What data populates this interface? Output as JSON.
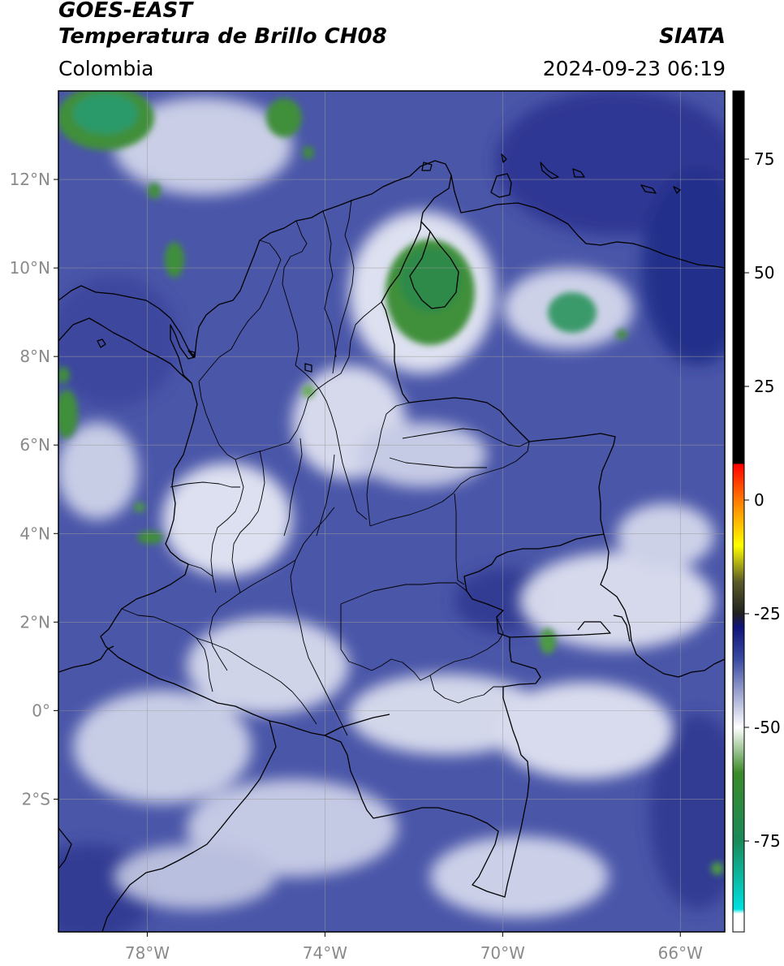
{
  "header": {
    "satellite": "GOES-EAST",
    "product": "Temperatura de Brillo CH08",
    "region": "Colombia",
    "agency": "SIATA",
    "datetime": "2024-09-23 06:19"
  },
  "map": {
    "lon_range": [
      -80,
      -65
    ],
    "lat_range": [
      -5,
      14
    ],
    "lat_ticks": [
      {
        "value": 12,
        "label": "12°N"
      },
      {
        "value": 10,
        "label": "10°N"
      },
      {
        "value": 8,
        "label": "8°N"
      },
      {
        "value": 6,
        "label": "6°N"
      },
      {
        "value": 4,
        "label": "4°N"
      },
      {
        "value": 2,
        "label": "2°N"
      },
      {
        "value": 0,
        "label": "0°"
      },
      {
        "value": -2,
        "label": "2°S"
      }
    ],
    "lon_ticks": [
      {
        "value": -78,
        "label": "78°W"
      },
      {
        "value": -74,
        "label": "74°W"
      },
      {
        "value": -70,
        "label": "70°W"
      },
      {
        "value": -66,
        "label": "66°W"
      }
    ],
    "grid": true
  },
  "colorbar": {
    "range": [
      -95,
      90
    ],
    "ticks": [
      {
        "value": 75,
        "label": "75"
      },
      {
        "value": 50,
        "label": "50"
      },
      {
        "value": 25,
        "label": "25"
      },
      {
        "value": 0,
        "label": "0"
      },
      {
        "value": -25,
        "label": "-25"
      },
      {
        "value": -50,
        "label": "-50"
      },
      {
        "value": -75,
        "label": "-75"
      }
    ],
    "color_stops": [
      {
        "value": 90,
        "color": "#000000"
      },
      {
        "value": 8,
        "color": "#000000"
      },
      {
        "value": 7.9,
        "color": "#ff0000"
      },
      {
        "value": 0,
        "color": "#ff7a00"
      },
      {
        "value": -10,
        "color": "#ffff00"
      },
      {
        "value": -18,
        "color": "#5a5a2a"
      },
      {
        "value": -25,
        "color": "#202020"
      },
      {
        "value": -28,
        "color": "#10147a"
      },
      {
        "value": -35,
        "color": "#3a4aa0"
      },
      {
        "value": -50,
        "color": "#ffffff"
      },
      {
        "value": -60,
        "color": "#3c8a2a"
      },
      {
        "value": -75,
        "color": "#1a8a5a"
      },
      {
        "value": -90,
        "color": "#00e0e0"
      },
      {
        "value": -91,
        "color": "#ffffff"
      },
      {
        "value": -95,
        "color": "#ffffff"
      }
    ]
  },
  "colors": {
    "background_cloud": "#4a56a8",
    "cold_cloud_white": "#eef0f6",
    "deep_convection": "#3f8f3a",
    "borders": "#000000",
    "grid": "#9a9a9a"
  }
}
